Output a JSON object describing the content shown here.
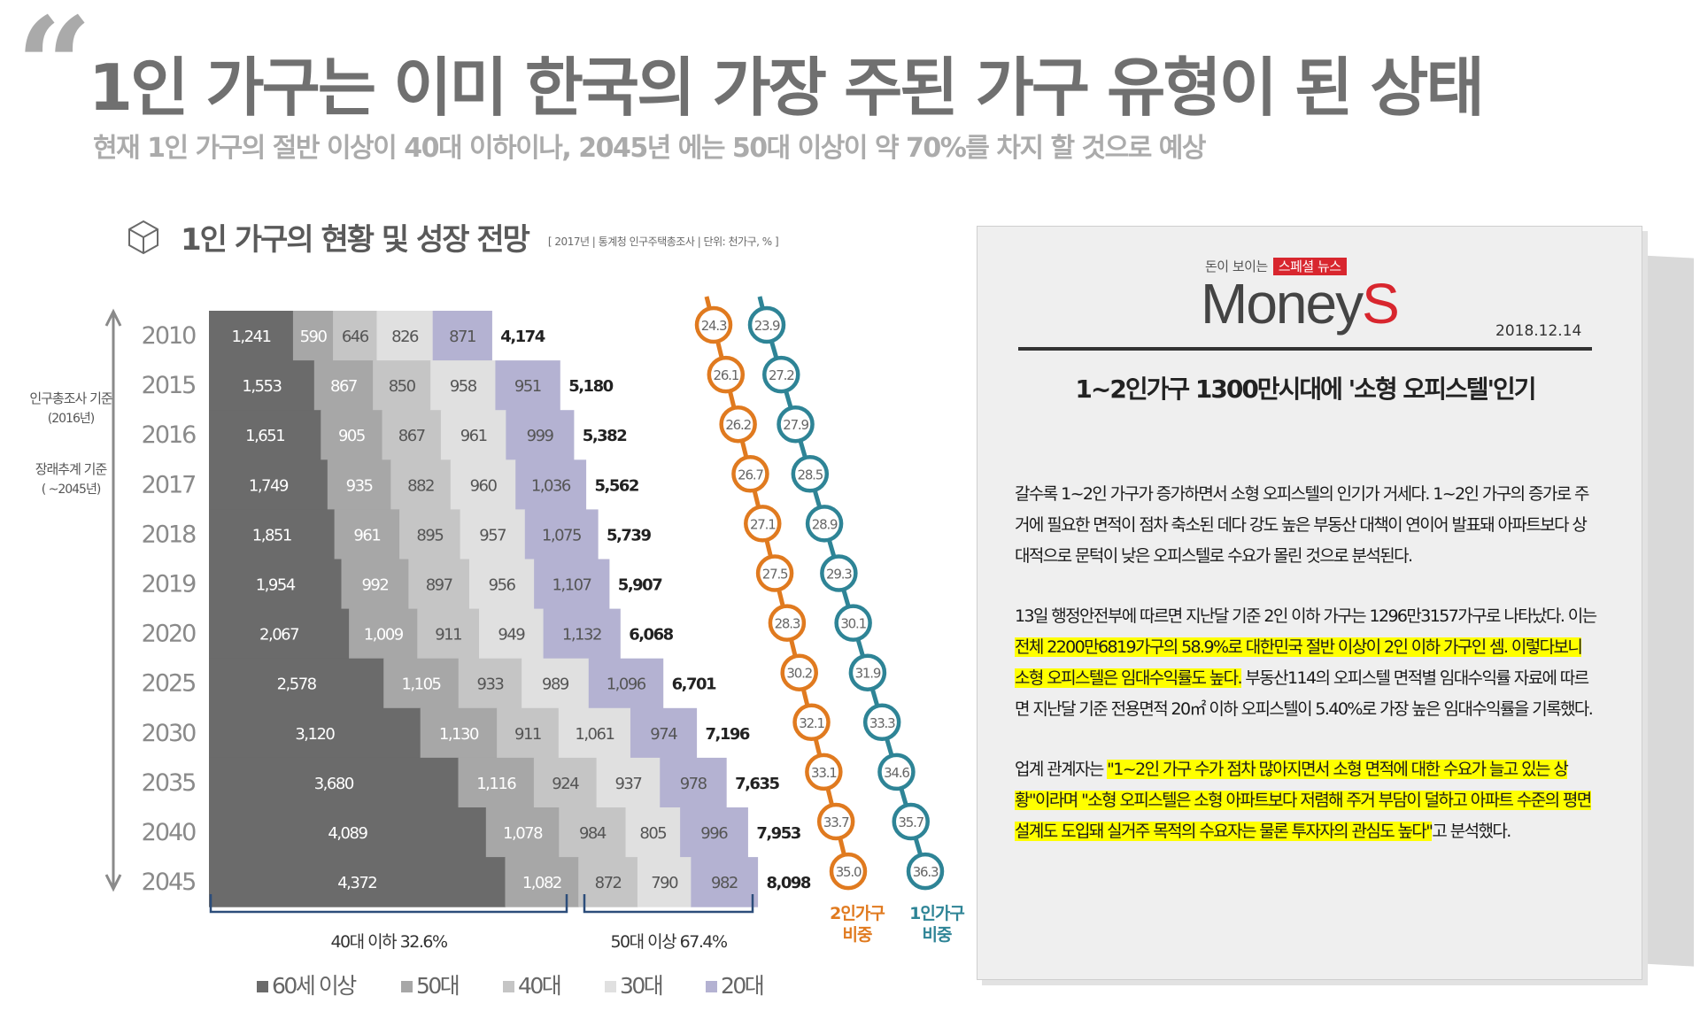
{
  "header": {
    "title": "1인 가구는 이미 한국의 가장 주된 가구 유형이 된 상태",
    "subtitle": "현재 1인 가구의 절반 이상이 40대 이하이나, 2045년 에는 50대 이상이 약 70%를 차지 할 것으로 예상"
  },
  "chart_data": {
    "type": "bar",
    "stacked": true,
    "orientation": "horizontal",
    "title": "1인 가구의 현황 및 성장 전망",
    "source_note": "[ 2017년 | 통계청 인구주택총조사 | 단위: 천가구, % ]",
    "categories": [
      "2010",
      "2015",
      "2016",
      "2017",
      "2018",
      "2019",
      "2020",
      "2025",
      "2030",
      "2035",
      "2040",
      "2045"
    ],
    "series": [
      {
        "name": "60세 이상",
        "color": "#6b6b6b",
        "values": [
          "1,241",
          "1,553",
          "1,651",
          "1,749",
          "1,851",
          "1,954",
          "2,067",
          "2,578",
          "3,120",
          "3,680",
          "4,089",
          "4,372"
        ]
      },
      {
        "name": "50대",
        "color": "#a7a7a7",
        "values": [
          "590",
          "867",
          "905",
          "935",
          "961",
          "992",
          "1,009",
          "1,105",
          "1,130",
          "1,116",
          "1,078",
          "1,082"
        ]
      },
      {
        "name": "40대",
        "color": "#c5c5c5",
        "values": [
          "646",
          "850",
          "867",
          "882",
          "895",
          "897",
          "911",
          "933",
          "911",
          "924",
          "984",
          "872"
        ]
      },
      {
        "name": "30대",
        "color": "#e0e0e0",
        "values": [
          "826",
          "958",
          "961",
          "960",
          "957",
          "956",
          "949",
          "989",
          "1,061",
          "937",
          "805",
          "790"
        ]
      },
      {
        "name": "20대",
        "color": "#b4b2d2",
        "values": [
          "871",
          "951",
          "999",
          "1,036",
          "1,075",
          "1,107",
          "1,132",
          "1,096",
          "974",
          "978",
          "996",
          "982"
        ]
      }
    ],
    "totals": [
      "4,174",
      "5,180",
      "5,382",
      "5,562",
      "5,739",
      "5,907",
      "6,068",
      "6,701",
      "7,196",
      "7,635",
      "7,953",
      "8,098"
    ],
    "share_2person": {
      "label": "2인가구 비중",
      "color": "#e07a1f",
      "values": [
        "24.3",
        "26.1",
        "26.2",
        "26.7",
        "27.1",
        "27.5",
        "28.3",
        "30.2",
        "32.1",
        "33.1",
        "33.7",
        "35.0"
      ]
    },
    "share_1person": {
      "label": "1인가구 비중",
      "color": "#2e8496",
      "values": [
        "23.9",
        "27.2",
        "27.9",
        "28.5",
        "28.9",
        "29.3",
        "30.1",
        "31.9",
        "33.3",
        "34.6",
        "35.7",
        "36.3"
      ]
    },
    "side_labels": [
      {
        "text": "인구총조사 기준",
        "sub": "(2016년)"
      },
      {
        "text": "장래추계 기준",
        "sub": "( ~2045년)"
      }
    ],
    "brackets": [
      {
        "label": "40대 이하 32.6%"
      },
      {
        "label": "50대 이상 67.4%"
      }
    ],
    "legend": [
      "60세 이상",
      "50대",
      "40대",
      "30대",
      "20대"
    ],
    "legend_position": "bottom"
  },
  "article": {
    "brand_tag": "돈이 보이는",
    "brand_special": "스페셜 뉴스",
    "logo_main": "Money",
    "logo_accent": "S",
    "date": "2018.12.14",
    "headline": "1~2인가구 1300만시대에 '소형 오피스텔'인기",
    "p1": "갈수록 1~2인 가구가 증가하면서 소형 오피스텔의 인기가 거세다. 1~2인 가구의 증가로 주거에 필요한 면적이 점차 축소된 데다 강도 높은 부동산 대책이 연이어 발표돼 아파트보다 상대적으로 문턱이 낮은 오피스텔로 수요가 몰린 것으로 분석된다.",
    "p2_a": "13일 행정안전부에 따르면 지난달 기준 2인 이하 가구는 1296만3157가구로 나타났다. 이는 ",
    "p2_hl": "전체 2200만6819가구의 58.9%로 대한민국 절반 이상이 2인 이하 가구인 셈. 이렇다보니 소형 오피스텔은 임대수익률도 높다.",
    "p2_b": " 부동산114의 오피스텔 면적별 임대수익률 자료에 따르면 지난달 기준 전용면적 20㎡ 이하 오피스텔이 5.40%로 가장 높은 임대수익률을 기록했다.",
    "p3_a": "업계 관계자는 ",
    "p3_hl": "\"1~2인 가구 수가 점차 많아지면서 소형 면적에 대한 수요가 늘고 있는 상황\"이라며 \"소형 오피스텔은 소형 아파트보다 저렴해 주거 부담이 덜하고 아파트 수준의 평면 설계도 도입돼 실거주 목적의 수요자는 물론 투자자의 관심도 높다\"",
    "p3_b": "고 분석했다."
  }
}
